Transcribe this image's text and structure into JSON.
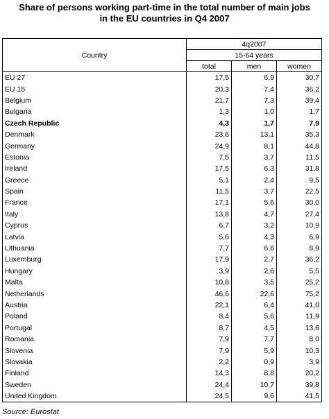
{
  "title_line1": "Share of persons working part-time in the total number of main jobs",
  "title_line2": "in the EU countries in Q4 2007",
  "header": {
    "country": "Country",
    "period": "4q2007",
    "age_group": "15-64 years",
    "total": "total",
    "men": "men",
    "women": "women"
  },
  "rows": [
    {
      "country": "EU 27",
      "total": "17,5",
      "men": "6,9",
      "women": "30,7"
    },
    {
      "country": "EU 15",
      "total": "20,3",
      "men": "7,4",
      "women": "36,2"
    },
    {
      "country": "Belgium",
      "total": "21,7",
      "men": "7,3",
      "women": "39,4"
    },
    {
      "country": "Bulgaria",
      "total": "1,3",
      "men": "1,0",
      "women": "1,7"
    },
    {
      "country": "Czech Republic",
      "total": "4,3",
      "men": "1,7",
      "women": "7,9",
      "bold": true
    },
    {
      "country": "Denmark",
      "total": "23,6",
      "men": "13,1",
      "women": "35,3"
    },
    {
      "country": "Germany",
      "total": "24,9",
      "men": "8,1",
      "women": "44,8"
    },
    {
      "country": "Estonia",
      "total": "7,5",
      "men": "3,7",
      "women": "11,5"
    },
    {
      "country": "Ireland",
      "total": "17,5",
      "men": "6,3",
      "women": "31,8"
    },
    {
      "country": "Greece",
      "total": "5,1",
      "men": "2,4",
      "women": "9,5"
    },
    {
      "country": "Spain",
      "total": "11,5",
      "men": "3,7",
      "women": "22,5"
    },
    {
      "country": "France",
      "total": "17,1",
      "men": "5,6",
      "women": "30,0"
    },
    {
      "country": "Italy",
      "total": "13,8",
      "men": "4,7",
      "women": "27,4"
    },
    {
      "country": "Cyprus",
      "total": "6,7",
      "men": "3,2",
      "women": "10,9"
    },
    {
      "country": "Latvia",
      "total": "5,6",
      "men": "4,3",
      "women": "6,9"
    },
    {
      "country": "Lithuania",
      "total": "7,7",
      "men": "6,6",
      "women": "8,9"
    },
    {
      "country": "Luxemburg",
      "total": "17,9",
      "men": "2,7",
      "women": "36,2"
    },
    {
      "country": "Hungary",
      "total": "3,9",
      "men": "2,6",
      "women": "5,5"
    },
    {
      "country": "Malta",
      "total": "10,8",
      "men": "3,5",
      "women": "25,2"
    },
    {
      "country": "Netherlands",
      "total": "46,6",
      "men": "22,6",
      "women": "75,2"
    },
    {
      "country": "Austria",
      "total": "22,1",
      "men": "6,4",
      "women": "41,0"
    },
    {
      "country": "Poland",
      "total": "8,4",
      "men": "5,6",
      "women": "11,9"
    },
    {
      "country": "Portugal",
      "total": "8,7",
      "men": "4,5",
      "women": "13,6"
    },
    {
      "country": "Romania",
      "total": "7,9",
      "men": "7,7",
      "women": "8,0"
    },
    {
      "country": "Slovenia",
      "total": "7,9",
      "men": "5,9",
      "women": "10,3"
    },
    {
      "country": "Slovakia",
      "total": "2,2",
      "men": "0,9",
      "women": "3,9"
    },
    {
      "country": "Finland",
      "total": "14,3",
      "men": "8,8",
      "women": "20,2"
    },
    {
      "country": "Sweden",
      "total": "24,4",
      "men": "10,7",
      "women": "39,8"
    },
    {
      "country": "United Kingdom",
      "total": "24,5",
      "men": "9,6",
      "women": "41,5"
    }
  ],
  "source": "Source: Eurostat"
}
